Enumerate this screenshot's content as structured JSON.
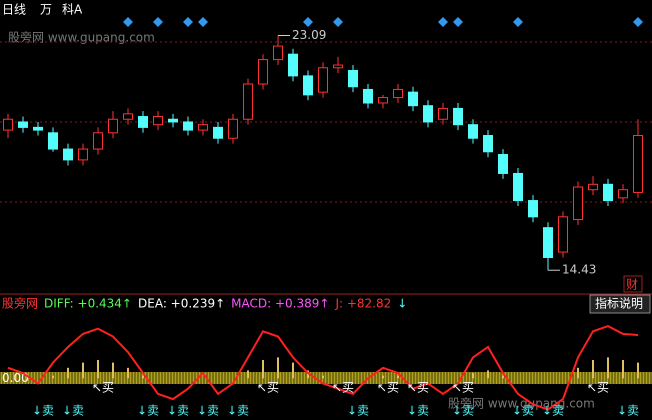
{
  "header": {
    "period": "日线",
    "weight": "万",
    "name": "科A",
    "watermark": "股旁网 www.gupang.com",
    "finance": "财"
  },
  "chart_data": [
    {
      "type": "candlestick",
      "ylim": [
        13.7,
        24.4
      ],
      "open": [
        19.6,
        19.9,
        19.7,
        19.5,
        18.9,
        18.5,
        18.9,
        19.5,
        20.0,
        20.1,
        19.8,
        20.0,
        19.9,
        19.6,
        19.7,
        19.3,
        20.0,
        21.3,
        22.2,
        22.4,
        21.6,
        21.0,
        21.9,
        21.8,
        21.1,
        20.6,
        20.8,
        21.0,
        20.5,
        20.0,
        20.4,
        19.8,
        19.4,
        18.7,
        18.0,
        17.0,
        16.0,
        15.1,
        16.3,
        17.4,
        17.6,
        17.1,
        17.3
      ],
      "close": [
        20.0,
        19.7,
        19.6,
        18.9,
        18.5,
        18.9,
        19.5,
        20.0,
        20.2,
        19.7,
        20.1,
        19.9,
        19.6,
        19.8,
        19.3,
        20.0,
        21.3,
        22.2,
        22.7,
        21.6,
        20.9,
        21.9,
        22.0,
        21.2,
        20.6,
        20.8,
        21.1,
        20.5,
        19.9,
        20.4,
        19.8,
        19.3,
        18.8,
        18.0,
        17.0,
        16.4,
        14.9,
        16.4,
        17.5,
        17.6,
        17.0,
        17.4,
        19.4
      ],
      "high": [
        20.2,
        20.1,
        19.9,
        19.7,
        19.1,
        19.1,
        19.7,
        20.3,
        20.4,
        20.3,
        20.3,
        20.2,
        20.1,
        20.0,
        19.9,
        20.2,
        21.5,
        22.4,
        23.09,
        22.6,
        21.8,
        22.1,
        22.3,
        22.0,
        21.3,
        20.9,
        21.3,
        21.2,
        20.7,
        20.6,
        20.6,
        20.0,
        19.6,
        18.9,
        18.2,
        17.2,
        16.2,
        16.6,
        17.7,
        17.9,
        17.8,
        17.6,
        20.0
      ],
      "low": [
        19.3,
        19.5,
        19.4,
        18.8,
        18.3,
        18.3,
        18.7,
        19.3,
        19.8,
        19.5,
        19.6,
        19.7,
        19.4,
        19.4,
        19.1,
        19.1,
        19.8,
        21.1,
        22.0,
        21.4,
        20.7,
        20.8,
        21.7,
        21.0,
        20.4,
        20.4,
        20.6,
        20.3,
        19.7,
        19.8,
        19.6,
        19.1,
        18.6,
        17.8,
        16.8,
        16.2,
        14.43,
        14.9,
        16.1,
        17.2,
        16.8,
        16.9,
        17.1
      ],
      "up_color": "#ff3232",
      "down_color": "#54fcfc",
      "annotations": [
        {
          "index": 18,
          "value": 23.09
        },
        {
          "index": 36,
          "value": 14.43
        }
      ],
      "signal_days": [
        8,
        10,
        12,
        13,
        20,
        22,
        29,
        30,
        34,
        42
      ]
    },
    {
      "type": "line",
      "legend": [
        "股旁网",
        "DIFF: +0.434↑",
        "DEA: +0.239↑",
        "MACD: +0.389↑",
        "J: +82.82",
        "↓"
      ],
      "legend_colors": [
        "#ff3232",
        "#54fc54",
        "#ffffff",
        "#ff54ff",
        "#ff3232",
        "#54fcfc"
      ],
      "button": "指标说明",
      "ylim": [
        -80,
        150
      ],
      "yticks": [
        {
          "value": 0,
          "label": "0.00"
        }
      ],
      "series": [
        {
          "name": "J",
          "color": "#ff2020",
          "values": [
            20,
            10,
            -10,
            30,
            60,
            85,
            95,
            80,
            50,
            10,
            -30,
            -40,
            -20,
            10,
            -30,
            -10,
            40,
            90,
            80,
            40,
            10,
            -10,
            -20,
            -30,
            0,
            20,
            10,
            -20,
            -10,
            -30,
            -10,
            40,
            60,
            10,
            -30,
            -50,
            -60,
            -40,
            40,
            90,
            100,
            85,
            82.82
          ]
        },
        {
          "name": "MACD",
          "color": "#e0c060",
          "values": [
            0,
            0,
            0,
            5,
            20,
            30,
            35,
            30,
            20,
            5,
            0,
            0,
            0,
            0,
            0,
            0,
            15,
            35,
            40,
            30,
            15,
            5,
            0,
            0,
            0,
            5,
            5,
            0,
            0,
            0,
            0,
            10,
            15,
            5,
            0,
            0,
            0,
            0,
            20,
            35,
            40,
            35,
            30
          ]
        }
      ],
      "buy_signals": [
        null,
        null,
        null,
        null,
        null,
        null,
        "↖买",
        null,
        null,
        null,
        null,
        null,
        null,
        null,
        null,
        null,
        null,
        "↖买",
        null,
        null,
        null,
        null,
        "↖买",
        null,
        null,
        "↖买",
        null,
        "↖买",
        null,
        null,
        "↖买",
        null,
        null,
        null,
        null,
        null,
        null,
        null,
        null,
        "↖买",
        null,
        null,
        null
      ],
      "sell_signals": [
        null,
        null,
        "↓卖",
        null,
        "↓卖",
        null,
        null,
        null,
        null,
        "↓卖",
        null,
        "↓卖",
        null,
        "↓卖",
        null,
        "↓卖",
        null,
        null,
        null,
        null,
        null,
        null,
        null,
        "↓卖",
        null,
        null,
        null,
        "↓卖",
        null,
        null,
        "↓卖",
        null,
        null,
        null,
        "↓卖",
        null,
        "↓卖",
        null,
        null,
        null,
        null,
        "↓卖",
        null
      ]
    }
  ]
}
